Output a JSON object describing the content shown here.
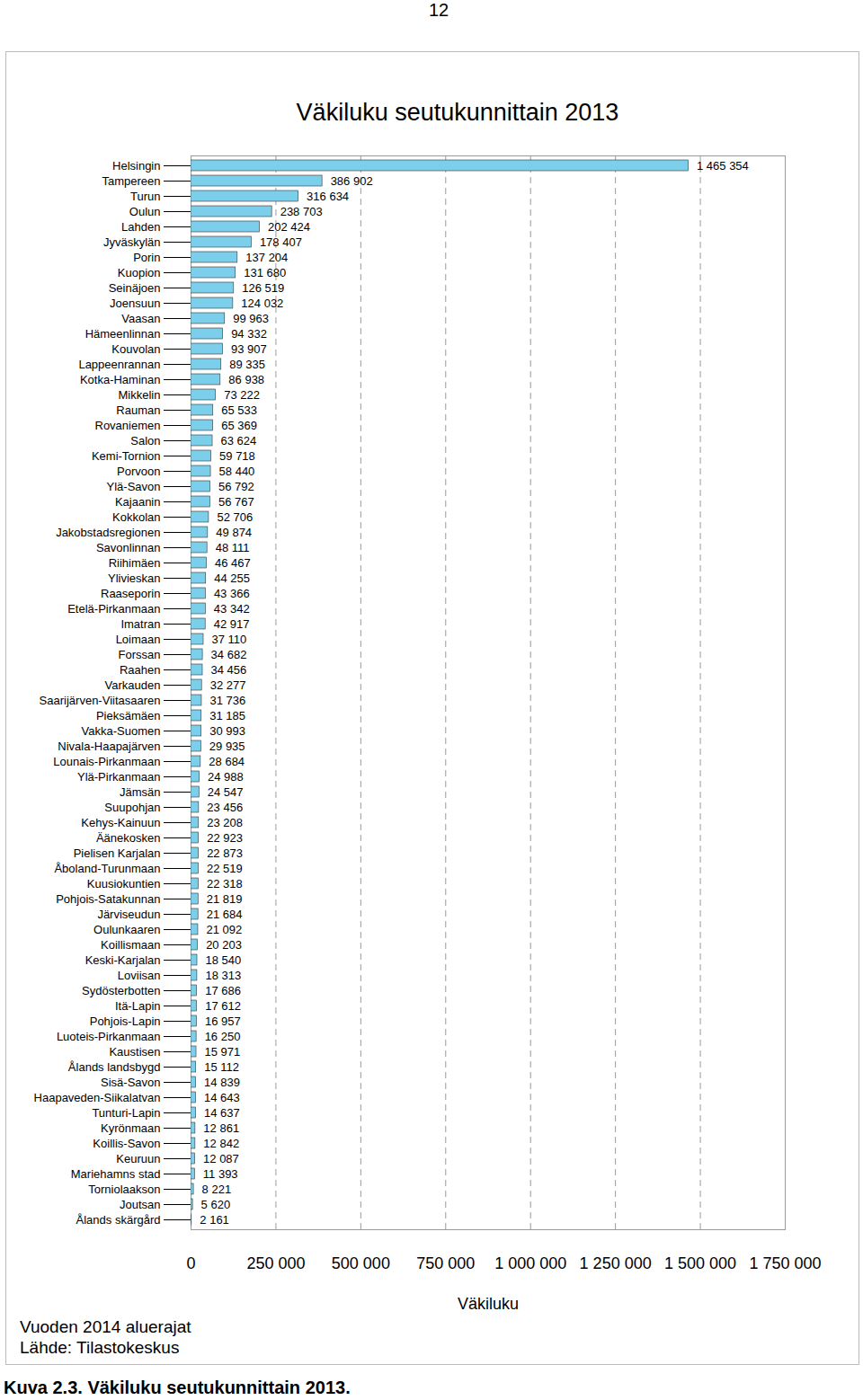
{
  "page_number": "12",
  "notes": [
    "Vuoden 2014 aluerajat",
    "Lähde: Tilastokeskus"
  ],
  "caption": "Kuva 2.3. Väkiluku seutukunnittain 2013.",
  "chart_data": {
    "type": "bar",
    "orientation": "horizontal",
    "title": "Väkiluku seutukunnittain 2013",
    "x_label": "Väkiluku",
    "categories": [
      "Helsingin",
      "Tampereen",
      "Turun",
      "Oulun",
      "Lahden",
      "Jyväskylän",
      "Porin",
      "Kuopion",
      "Seinäjoen",
      "Joensuun",
      "Vaasan",
      "Hämeenlinnan",
      "Kouvolan",
      "Lappeenrannan",
      "Kotka-Haminan",
      "Mikkelin",
      "Rauman",
      "Rovaniemen",
      "Salon",
      "Kemi-Tornion",
      "Porvoon",
      "Ylä-Savon",
      "Kajaanin",
      "Kokkolan",
      "Jakobstadsregionen",
      "Savonlinnan",
      "Riihimäen",
      "Ylivieskan",
      "Raaseporin",
      "Etelä-Pirkanmaan",
      "Imatran",
      "Loimaan",
      "Forssan",
      "Raahen",
      "Varkauden",
      "Saarijärven-Viitasaaren",
      "Pieksämäen",
      "Vakka-Suomen",
      "Nivala-Haapajärven",
      "Lounais-Pirkanmaan",
      "Ylä-Pirkanmaan",
      "Jämsän",
      "Suupohjan",
      "Kehys-Kainuun",
      "Äänekosken",
      "Pielisen Karjalan",
      "Åboland-Turunmaan",
      "Kuusiokuntien",
      "Pohjois-Satakunnan",
      "Järviseudun",
      "Oulunkaaren",
      "Koillismaan",
      "Keski-Karjalan",
      "Loviisan",
      "Sydösterbotten",
      "Itä-Lapin",
      "Pohjois-Lapin",
      "Luoteis-Pirkanmaan",
      "Kaustisen",
      "Ålands landsbygd",
      "Sisä-Savon",
      "Haapaveden-Siikalatvan",
      "Tunturi-Lapin",
      "Kyrönmaan",
      "Koillis-Savon",
      "Keuruun",
      "Mariehamns stad",
      "Torniolaakson",
      "Joutsan",
      "Ålands skärgård"
    ],
    "values": [
      1465354,
      386902,
      316634,
      238703,
      202424,
      178407,
      137204,
      131680,
      126519,
      124032,
      99963,
      94332,
      93907,
      89335,
      86938,
      73222,
      65533,
      65369,
      63624,
      59718,
      58440,
      56792,
      56767,
      52706,
      49874,
      48111,
      46467,
      44255,
      43366,
      43342,
      42917,
      37110,
      34682,
      34456,
      32277,
      31736,
      31185,
      30993,
      29935,
      28684,
      24988,
      24547,
      23456,
      23208,
      22923,
      22873,
      22519,
      22318,
      21819,
      21684,
      21092,
      20203,
      18540,
      18313,
      17686,
      17612,
      16957,
      16250,
      15971,
      15112,
      14839,
      14643,
      14637,
      12861,
      12842,
      12087,
      11393,
      8221,
      5620,
      2161
    ],
    "value_labels": [
      "1 465 354",
      "386 902",
      "316 634",
      "238 703",
      "202 424",
      "178 407",
      "137 204",
      "131 680",
      "126 519",
      "124 032",
      "99 963",
      "94 332",
      "93 907",
      "89 335",
      "86 938",
      "73 222",
      "65 533",
      "65 369",
      "63 624",
      "59 718",
      "58 440",
      "56 792",
      "56 767",
      "52 706",
      "49 874",
      "48 111",
      "46 467",
      "44 255",
      "43 366",
      "43 342",
      "42 917",
      "37 110",
      "34 682",
      "34 456",
      "32 277",
      "31 736",
      "31 185",
      "30 993",
      "29 935",
      "28 684",
      "24 988",
      "24 547",
      "23 456",
      "23 208",
      "22 923",
      "22 873",
      "22 519",
      "22 318",
      "21 819",
      "21 684",
      "21 092",
      "20 203",
      "18 540",
      "18 313",
      "17 686",
      "17 612",
      "16 957",
      "16 250",
      "15 971",
      "15 112",
      "14 839",
      "14 643",
      "14 637",
      "12 861",
      "12 842",
      "12 087",
      "11 393",
      "8 221",
      "5 620",
      "2 161"
    ],
    "data_labels": true,
    "color": "#7ccfeb",
    "grid": true,
    "xlim": [
      0,
      1750000
    ],
    "xticks": [
      0,
      {
        "value": 250000,
        "label": "250 000"
      },
      {
        "value": 500000,
        "label": "500 000"
      },
      {
        "value": 750000,
        "label": "750 000"
      },
      {
        "value": 1000000,
        "label": "1 000 000"
      },
      {
        "value": 1250000,
        "label": "1 250 000"
      },
      {
        "value": 1500000,
        "label": "1 500 000"
      },
      {
        "value": 1750000,
        "label": "1 750 000"
      }
    ]
  }
}
